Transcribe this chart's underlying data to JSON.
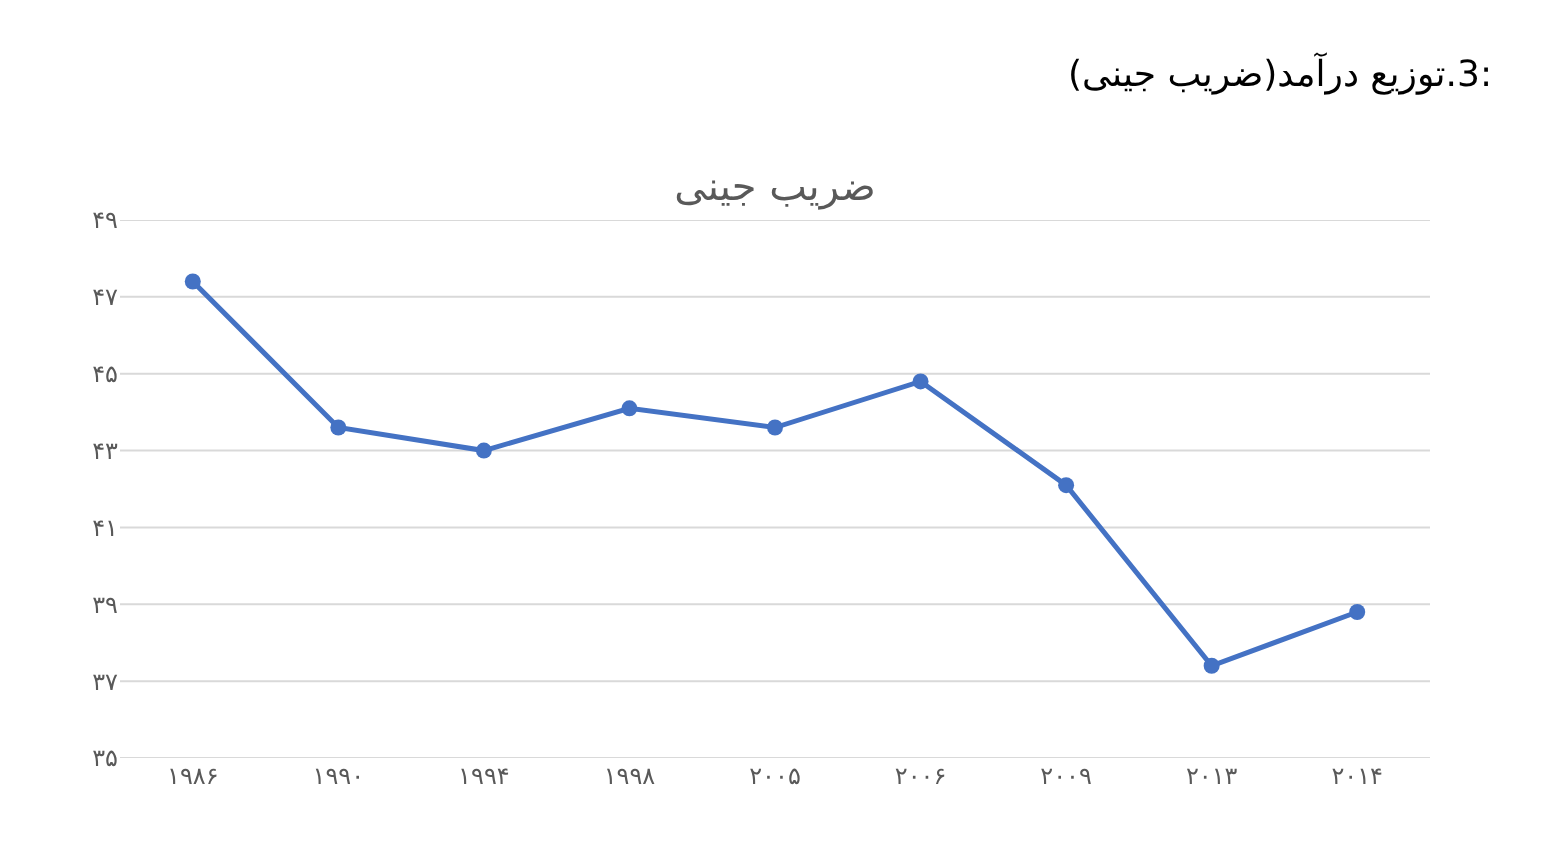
{
  "chart_data": {
    "type": "line",
    "title": "ضریب جینی",
    "annotations": [
      "3.توزیع درآمد(ضریب جینی):"
    ],
    "categories": [
      "۱۹۸۶",
      "۱۹۹۰",
      "۱۹۹۴",
      "۱۹۹۸",
      "۲۰۰۵",
      "۲۰۰۶",
      "۲۰۰۹",
      "۲۰۱۳",
      "۲۰۱۴"
    ],
    "series": [
      {
        "color": "#4472c4",
        "values": [
          47.4,
          43.6,
          43.0,
          44.1,
          43.6,
          44.8,
          42.1,
          37.4,
          38.8
        ]
      }
    ],
    "ylim": [
      35,
      49
    ],
    "yticks": [
      {
        "value": 35,
        "label": "۳۵"
      },
      {
        "value": 37,
        "label": "۳۷"
      },
      {
        "value": 39,
        "label": "۳۹"
      },
      {
        "value": 41,
        "label": "۴۱"
      },
      {
        "value": 43,
        "label": "۴۳"
      },
      {
        "value": 45,
        "label": "۴۵"
      },
      {
        "value": 47,
        "label": "۴۷"
      },
      {
        "value": 49,
        "label": "۴۹"
      }
    ],
    "grid": "y",
    "marker": "circle",
    "line_style": "solid"
  }
}
